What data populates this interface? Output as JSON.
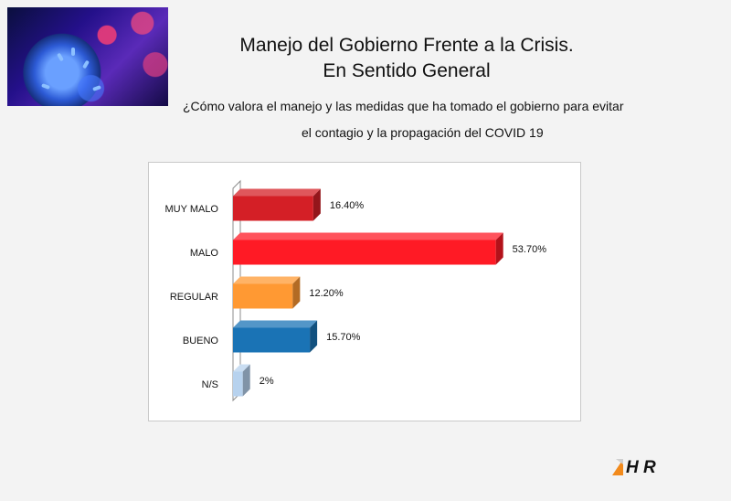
{
  "header": {
    "title_line1": "Manejo del Gobierno Frente a la Crisis.",
    "title_line2": "En Sentido General",
    "question_line1": "¿Cómo valora el manejo y las medidas que ha tomado el gobierno  para evitar",
    "question_line2": "el contagio y la propagación del COVID 19"
  },
  "logo": {
    "text": "H R"
  },
  "chart_data": {
    "type": "bar",
    "orientation": "horizontal",
    "style": "3d",
    "categories": [
      "MUY MALO",
      "MALO",
      "REGULAR",
      "BUENO",
      "N/S"
    ],
    "values": [
      16.4,
      53.7,
      12.2,
      15.7,
      2
    ],
    "data_labels": [
      "16.40%",
      "53.70%",
      "12.20%",
      "15.70%",
      "2%"
    ],
    "colors": [
      "#d41f26",
      "#ff1a25",
      "#ff9933",
      "#1a73b5",
      "#b7d2ee"
    ],
    "xlim": [
      0,
      56
    ],
    "grid": false,
    "legend": "none"
  }
}
